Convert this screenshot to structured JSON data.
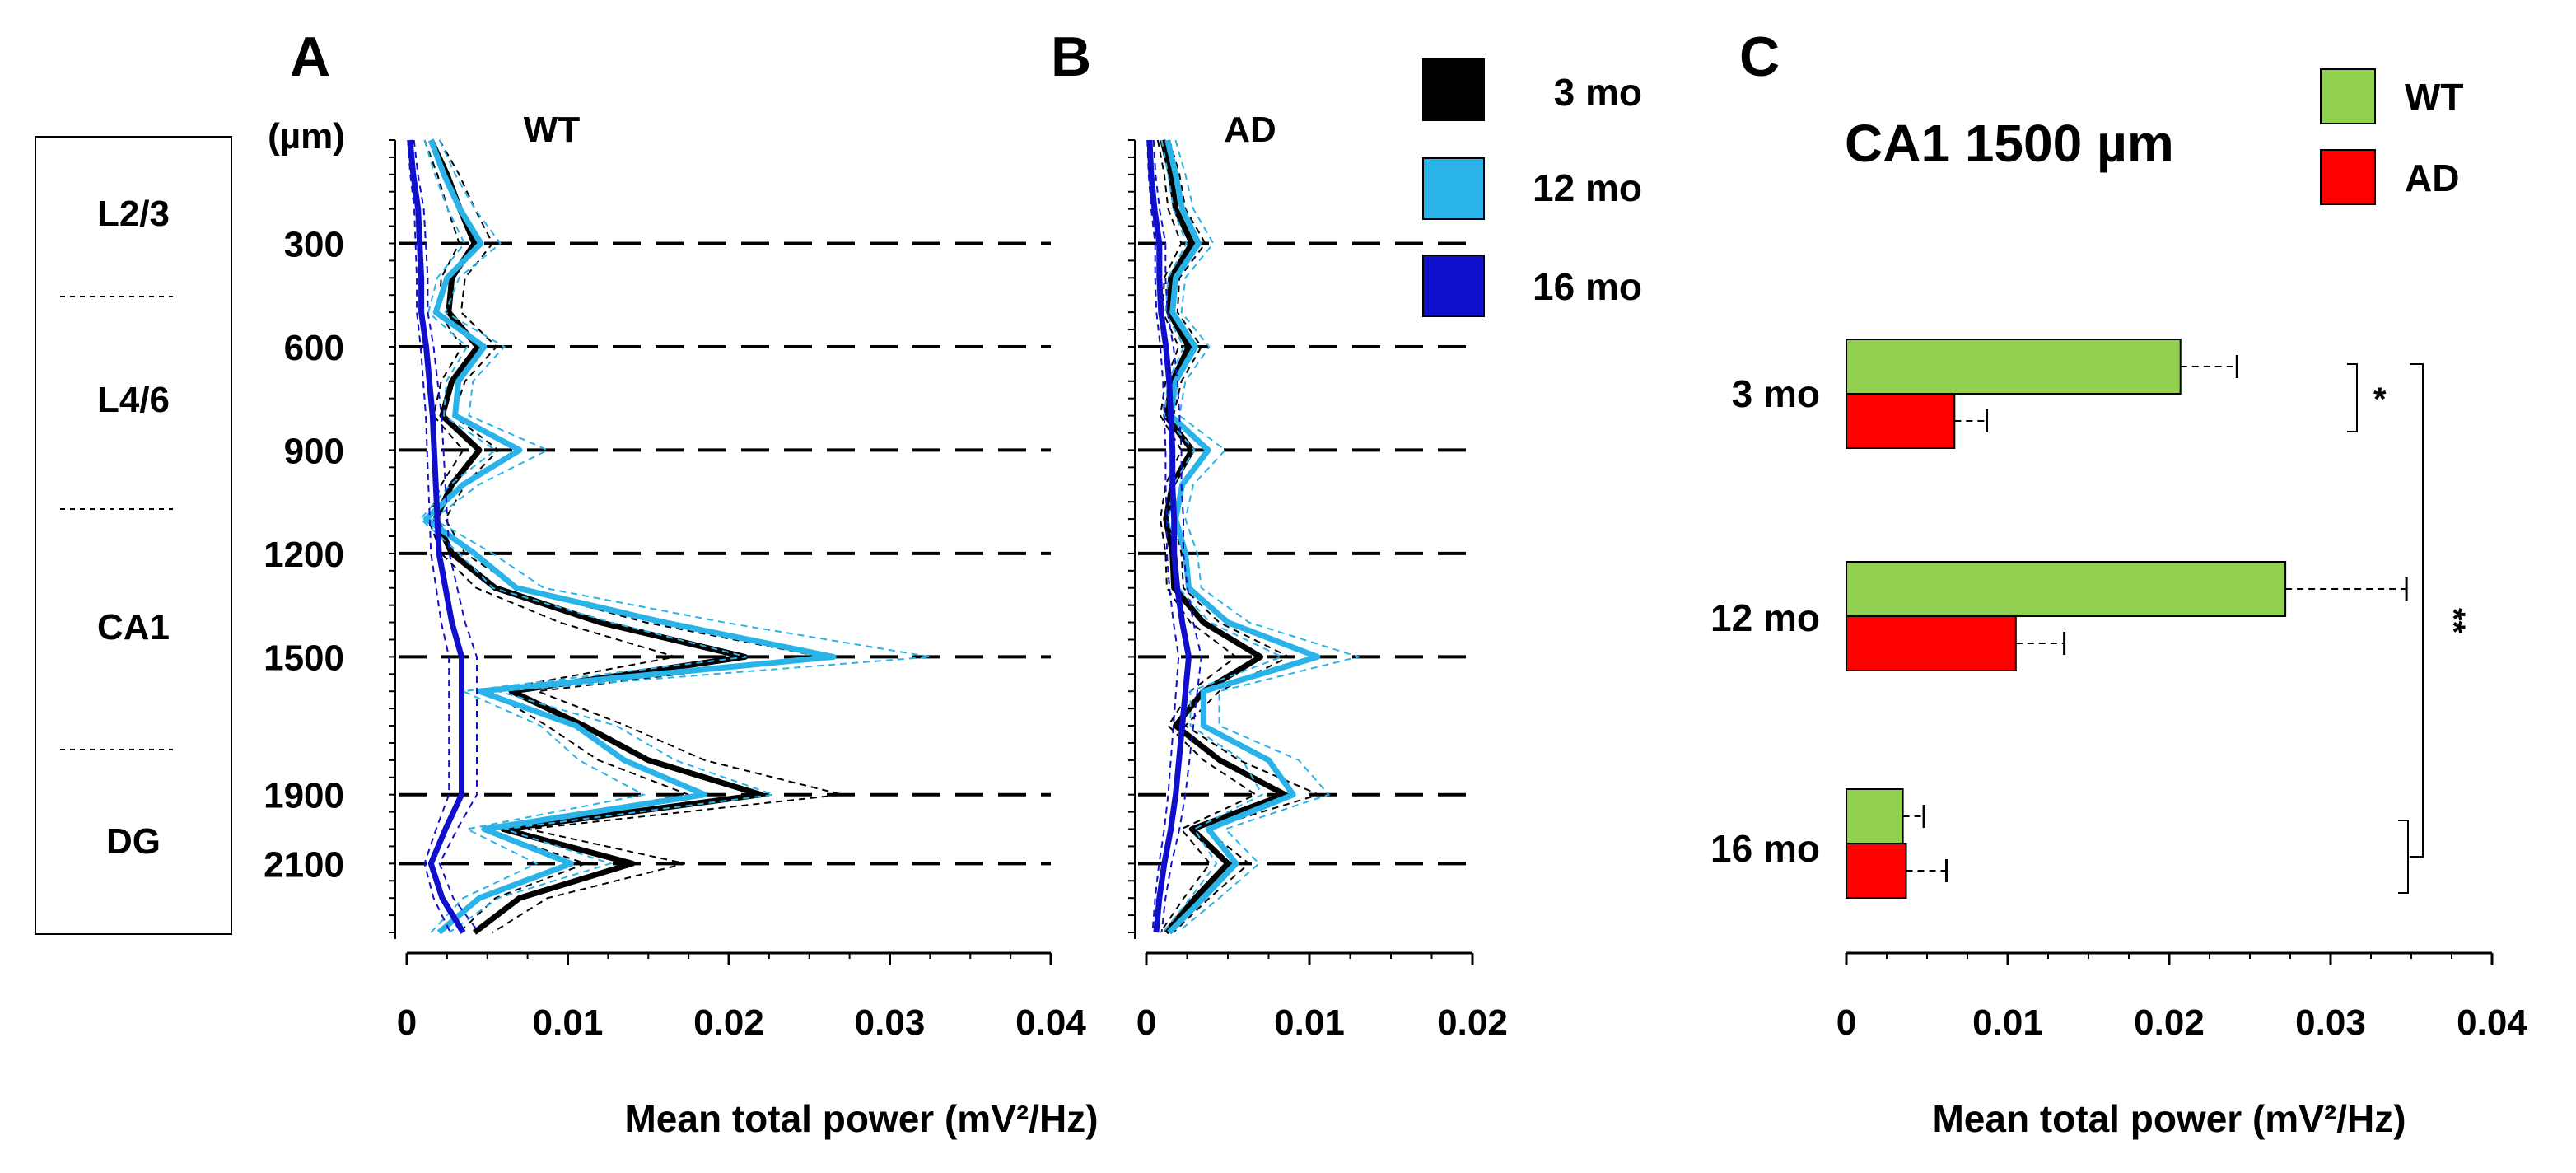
{
  "colors": {
    "mo3": "#000000",
    "mo12": "#29b3e8",
    "mo16": "#1010cc",
    "wt": "#92d050",
    "ad": "#ff0000"
  },
  "panel_labels": {
    "a": "A",
    "b": "B",
    "c": "C"
  },
  "layers": [
    {
      "label": "L2/3"
    },
    {
      "label": "L4/6"
    },
    {
      "label": "CA1"
    },
    {
      "label": "DG"
    }
  ],
  "legend_ab": [
    {
      "label": "3 mo",
      "color": "#000000"
    },
    {
      "label": "12 mo",
      "color": "#29b3e8"
    },
    {
      "label": "16 mo",
      "color": "#1010cc"
    }
  ],
  "legend_c": [
    {
      "label": "WT",
      "color": "#92d050"
    },
    {
      "label": "AD",
      "color": "#ff0000"
    }
  ],
  "chart_data": [
    {
      "panel": "A",
      "type": "line",
      "title": "WT",
      "xlabel": "Mean total power (mV²/Hz)",
      "ylabel": "(µm)",
      "xlim": [
        0,
        0.04
      ],
      "xticks": [
        "0",
        "0.01",
        "0.02",
        "0.03",
        "0.04"
      ],
      "ylim": [
        0,
        2300
      ],
      "yticks": [
        300,
        600,
        900,
        1200,
        1500,
        1900,
        2100
      ],
      "depth": [
        0,
        100,
        200,
        300,
        400,
        500,
        600,
        700,
        800,
        900,
        1000,
        1100,
        1200,
        1300,
        1400,
        1500,
        1600,
        1700,
        1800,
        1900,
        2000,
        2100,
        2200,
        2300
      ],
      "series": [
        {
          "name": "3 mo",
          "values": [
            0.0015,
            0.0025,
            0.0033,
            0.0042,
            0.0028,
            0.0026,
            0.0044,
            0.0028,
            0.0022,
            0.0045,
            0.0028,
            0.0018,
            0.0028,
            0.0055,
            0.012,
            0.021,
            0.0065,
            0.011,
            0.015,
            0.022,
            0.006,
            0.014,
            0.007,
            0.0042
          ]
        },
        {
          "name": "12 mo",
          "values": [
            0.0015,
            0.0023,
            0.0033,
            0.0046,
            0.0025,
            0.0018,
            0.0048,
            0.0032,
            0.003,
            0.007,
            0.0035,
            0.0012,
            0.0042,
            0.0068,
            0.016,
            0.0265,
            0.0045,
            0.0105,
            0.0135,
            0.0185,
            0.0048,
            0.0102,
            0.0045,
            0.002
          ]
        },
        {
          "name": "16 mo",
          "values": [
            0.0002,
            0.0004,
            0.0007,
            0.0008,
            0.0009,
            0.0009,
            0.0012,
            0.0014,
            0.0016,
            0.0017,
            0.0018,
            0.0019,
            0.002,
            0.0024,
            0.0028,
            0.0034,
            0.0034,
            0.0034,
            0.0034,
            0.0034,
            0.0024,
            0.0015,
            0.0022,
            0.0035
          ]
        }
      ]
    },
    {
      "panel": "B",
      "type": "line",
      "title": "AD",
      "xlim": [
        0,
        0.02
      ],
      "xticks": [
        "0",
        "0.01",
        "0.02"
      ],
      "ylim": [
        0,
        2300
      ],
      "depth": [
        0,
        100,
        200,
        300,
        400,
        500,
        600,
        700,
        800,
        900,
        1000,
        1100,
        1200,
        1300,
        1400,
        1500,
        1600,
        1700,
        1800,
        1900,
        2000,
        2100,
        2200,
        2300
      ],
      "series": [
        {
          "name": "3 mo",
          "values": [
            0.001,
            0.0015,
            0.0018,
            0.0028,
            0.0015,
            0.0014,
            0.0026,
            0.0016,
            0.0012,
            0.0028,
            0.0016,
            0.0012,
            0.0016,
            0.0017,
            0.0035,
            0.007,
            0.0035,
            0.0018,
            0.0045,
            0.0085,
            0.0028,
            0.005,
            0.003,
            0.0012
          ]
        },
        {
          "name": "12 mo",
          "values": [
            0.0013,
            0.0018,
            0.0022,
            0.0032,
            0.0018,
            0.0016,
            0.003,
            0.0018,
            0.0015,
            0.0038,
            0.0022,
            0.0018,
            0.0024,
            0.0026,
            0.005,
            0.0105,
            0.0035,
            0.0035,
            0.0075,
            0.009,
            0.0038,
            0.0055,
            0.0035,
            0.0014
          ]
        },
        {
          "name": "16 mo",
          "values": [
            0.0002,
            0.0003,
            0.0005,
            0.0008,
            0.0008,
            0.0009,
            0.0012,
            0.0014,
            0.0015,
            0.0016,
            0.0016,
            0.0017,
            0.0017,
            0.0019,
            0.0022,
            0.0026,
            0.0024,
            0.0022,
            0.002,
            0.0018,
            0.0015,
            0.0011,
            0.0008,
            0.0006
          ]
        }
      ]
    },
    {
      "panel": "C",
      "type": "bar",
      "orientation": "horizontal",
      "title": "CA1 1500 µm",
      "xlabel": "Mean total power (mV²/Hz)",
      "xlim": [
        0,
        0.04
      ],
      "xticks": [
        "0",
        "0.01",
        "0.02",
        "0.03",
        "0.04"
      ],
      "categories": [
        "3 mo",
        "12 mo",
        "16 mo"
      ],
      "series": [
        {
          "name": "WT",
          "values": [
            0.0207,
            0.0272,
            0.0035
          ],
          "errors": [
            0.0035,
            0.0075,
            0.0013
          ]
        },
        {
          "name": "AD",
          "values": [
            0.0067,
            0.0105,
            0.0037
          ],
          "errors": [
            0.002,
            0.003,
            0.0025
          ]
        }
      ],
      "annotations": [
        {
          "text": "*"
        },
        {
          "text": "**"
        }
      ]
    }
  ]
}
